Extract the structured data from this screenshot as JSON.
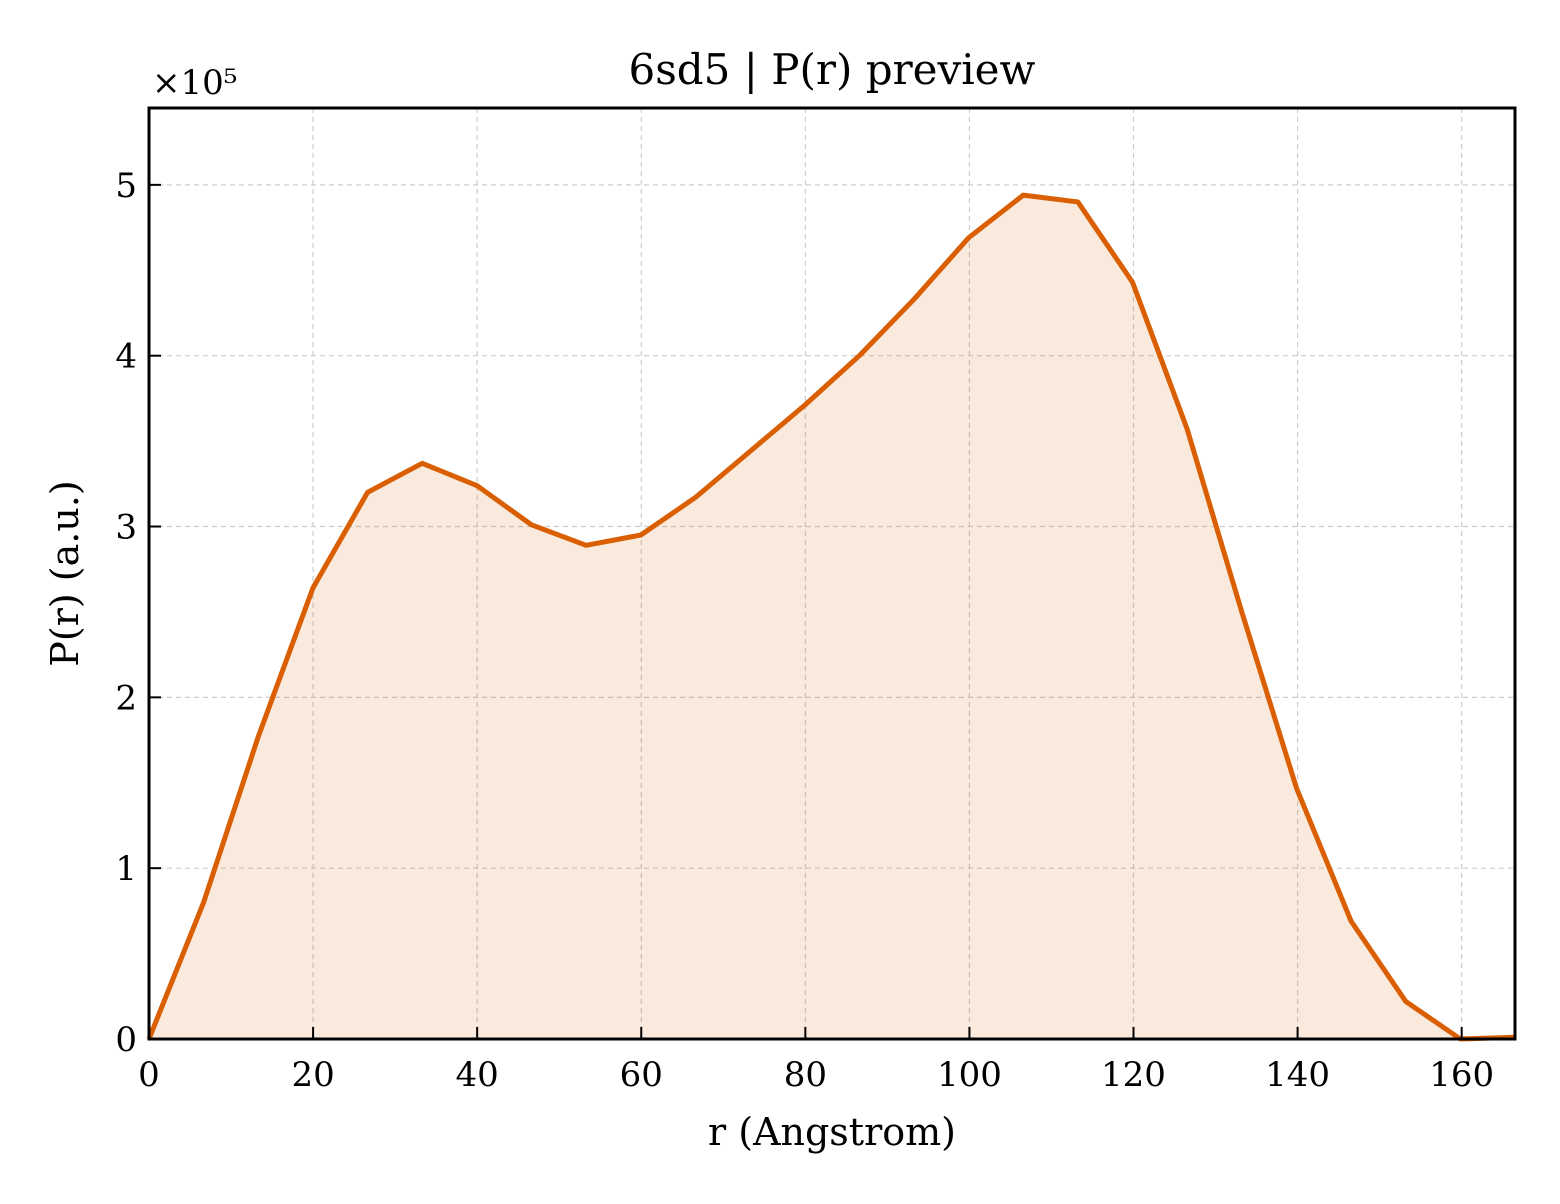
{
  "chart_data": {
    "type": "area",
    "title": "6sd5 | P(r) preview",
    "xlabel": "r (Angstrom)",
    "ylabel": "P(r) (a.u.)",
    "y_offset_label": "×10⁵",
    "xlim": [
      0,
      166.5
    ],
    "ylim": [
      0,
      5.45
    ],
    "y_scale_factor": 100000,
    "xticks": [
      0,
      20,
      40,
      60,
      80,
      100,
      120,
      140,
      160
    ],
    "xtick_labels": [
      "0",
      "20",
      "40",
      "60",
      "80",
      "100",
      "120",
      "140",
      "160"
    ],
    "yticks": [
      0,
      1,
      2,
      3,
      4,
      5
    ],
    "ytick_labels": [
      "0",
      "1",
      "2",
      "3",
      "4",
      "5"
    ],
    "grid": true,
    "series": [
      {
        "x": [
          0,
          6.66,
          13.32,
          19.98,
          26.64,
          33.3,
          39.96,
          46.62,
          53.28,
          59.94,
          66.6,
          73.26,
          79.92,
          86.58,
          93.24,
          99.9,
          106.56,
          113.22,
          119.88,
          126.54,
          133.2,
          139.86,
          146.52,
          153.18,
          159.84,
          166.5
        ],
        "y": [
          0.0,
          0.8,
          1.77,
          2.64,
          3.2,
          3.37,
          3.24,
          3.01,
          2.89,
          2.95,
          3.17,
          3.44,
          3.71,
          4.0,
          4.33,
          4.69,
          4.94,
          4.9,
          4.43,
          3.57,
          2.5,
          1.47,
          0.69,
          0.22,
          0.0,
          0.01
        ],
        "color": "#d95f02",
        "fill_color": "#d95f02",
        "fill_opacity": 0.13
      }
    ]
  }
}
